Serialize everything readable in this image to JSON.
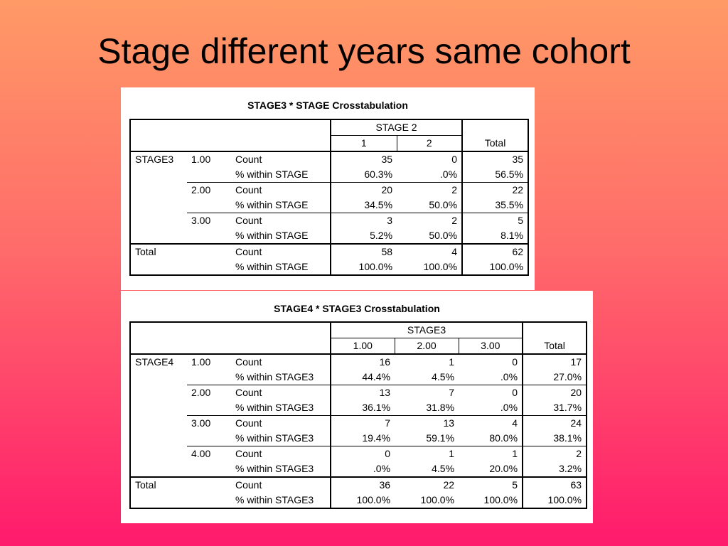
{
  "title": "Stage different years same cohort",
  "table1": {
    "title": "STAGE3 * STAGE Crosstabulation",
    "col_group": "STAGE 2",
    "col_values": [
      "1",
      "2"
    ],
    "total_label": "Total",
    "row_var": "STAGE3",
    "count_label": "Count",
    "pct_label": "% within STAGE",
    "rows": [
      {
        "label": "1.00",
        "count": [
          "35",
          "0",
          "35"
        ],
        "pct": [
          "60.3%",
          ".0%",
          "56.5%"
        ]
      },
      {
        "label": "2.00",
        "count": [
          "20",
          "2",
          "22"
        ],
        "pct": [
          "34.5%",
          "50.0%",
          "35.5%"
        ]
      },
      {
        "label": "3.00",
        "count": [
          "3",
          "2",
          "5"
        ],
        "pct": [
          "5.2%",
          "50.0%",
          "8.1%"
        ]
      }
    ],
    "total": {
      "label": "Total",
      "count": [
        "58",
        "4",
        "62"
      ],
      "pct": [
        "100.0%",
        "100.0%",
        "100.0%"
      ]
    }
  },
  "table2": {
    "title": "STAGE4 * STAGE3 Crosstabulation",
    "col_group": "STAGE3",
    "col_values": [
      "1.00",
      "2.00",
      "3.00"
    ],
    "total_label": "Total",
    "row_var": "STAGE4",
    "count_label": "Count",
    "pct_label": "% within STAGE3",
    "rows": [
      {
        "label": "1.00",
        "count": [
          "16",
          "1",
          "0",
          "17"
        ],
        "pct": [
          "44.4%",
          "4.5%",
          ".0%",
          "27.0%"
        ]
      },
      {
        "label": "2.00",
        "count": [
          "13",
          "7",
          "0",
          "20"
        ],
        "pct": [
          "36.1%",
          "31.8%",
          ".0%",
          "31.7%"
        ]
      },
      {
        "label": "3.00",
        "count": [
          "7",
          "13",
          "4",
          "24"
        ],
        "pct": [
          "19.4%",
          "59.1%",
          "80.0%",
          "38.1%"
        ]
      },
      {
        "label": "4.00",
        "count": [
          "0",
          "1",
          "1",
          "2"
        ],
        "pct": [
          ".0%",
          "4.5%",
          "20.0%",
          "3.2%"
        ]
      }
    ],
    "total": {
      "label": "Total",
      "count": [
        "36",
        "22",
        "5",
        "63"
      ],
      "pct": [
        "100.0%",
        "100.0%",
        "100.0%",
        "100.0%"
      ]
    }
  }
}
